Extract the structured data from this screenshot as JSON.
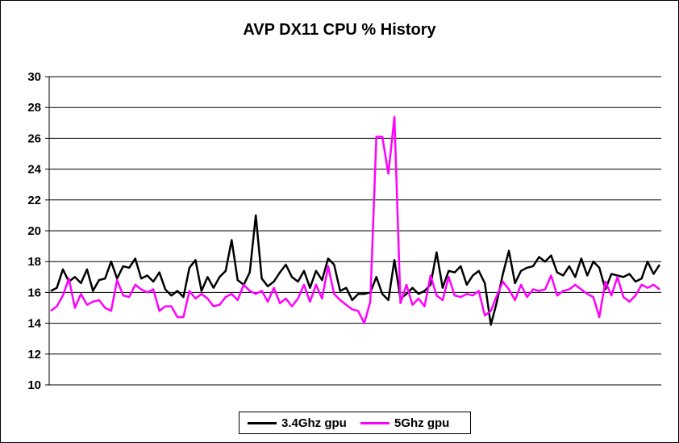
{
  "chart_data": {
    "type": "line",
    "title": "AVP DX11 CPU % History",
    "xlabel": "",
    "ylabel": "",
    "ylim": [
      10,
      30
    ],
    "yticks": [
      10,
      12,
      14,
      16,
      18,
      20,
      22,
      24,
      26,
      28,
      30
    ],
    "grid": true,
    "legend": "bottom",
    "series": [
      {
        "name": "3.4Ghz gpu",
        "color": "#000000",
        "values": [
          16.1,
          16.3,
          17.5,
          16.7,
          17.0,
          16.6,
          17.5,
          16.1,
          16.8,
          16.9,
          18.0,
          16.9,
          17.7,
          17.6,
          18.2,
          16.9,
          17.1,
          16.7,
          17.3,
          16.2,
          15.8,
          16.1,
          15.7,
          17.6,
          18.1,
          16.1,
          17.0,
          16.3,
          17.0,
          17.4,
          19.4,
          16.8,
          16.5,
          17.3,
          21.0,
          16.9,
          16.4,
          16.7,
          17.3,
          17.8,
          17.0,
          16.7,
          17.4,
          16.3,
          17.4,
          16.8,
          18.2,
          17.8,
          16.1,
          16.3,
          15.5,
          15.9,
          15.9,
          16.0,
          17.0,
          15.9,
          15.5,
          18.1,
          15.6,
          15.9,
          16.3,
          15.9,
          16.1,
          16.5,
          18.6,
          16.3,
          17.4,
          17.3,
          17.7,
          16.5,
          17.1,
          17.4,
          16.6,
          13.9,
          15.4,
          17.2,
          18.7,
          16.6,
          17.4,
          17.6,
          17.7,
          18.3,
          18.0,
          18.4,
          17.3,
          17.1,
          17.7,
          17.0,
          18.2,
          17.1,
          18.0,
          17.6,
          16.2,
          17.2,
          17.1,
          17.0,
          17.2,
          16.7,
          16.9,
          18.0,
          17.2,
          17.8
        ]
      },
      {
        "name": "5Ghz gpu",
        "color": "#ff00ff",
        "values": [
          14.8,
          15.1,
          15.8,
          16.9,
          15.0,
          15.9,
          15.2,
          15.4,
          15.5,
          15.0,
          14.8,
          16.8,
          15.8,
          15.7,
          16.5,
          16.2,
          16.0,
          16.2,
          14.8,
          15.1,
          15.1,
          14.4,
          14.4,
          16.1,
          15.6,
          15.9,
          15.6,
          15.1,
          15.2,
          15.7,
          15.9,
          15.5,
          16.5,
          16.1,
          15.9,
          16.1,
          15.4,
          16.3,
          15.3,
          15.6,
          15.1,
          15.6,
          16.5,
          15.4,
          16.5,
          15.6,
          17.7,
          15.9,
          15.5,
          15.2,
          14.9,
          14.8,
          14.0,
          15.4,
          26.1,
          26.1,
          23.7,
          27.4,
          15.3,
          16.5,
          15.2,
          15.6,
          15.1,
          17.1,
          15.8,
          15.5,
          17.0,
          15.8,
          15.7,
          15.9,
          15.8,
          16.1,
          14.5,
          14.8,
          15.8,
          16.7,
          16.2,
          15.5,
          16.5,
          15.7,
          16.2,
          16.1,
          16.2,
          17.1,
          15.8,
          16.1,
          16.2,
          16.5,
          16.2,
          15.9,
          15.7,
          14.4,
          16.7,
          15.8,
          17.0,
          15.7,
          15.4,
          15.8,
          16.5,
          16.3,
          16.5,
          16.2
        ]
      }
    ]
  }
}
